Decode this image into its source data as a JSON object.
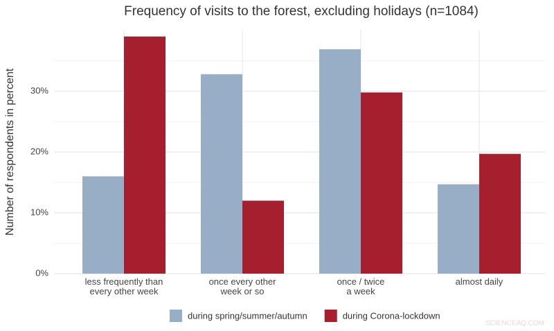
{
  "chart_data": {
    "type": "bar",
    "title": "Frequency of visits to the forest, excluding holidays (n=1084)",
    "y_label": "Number of respondents in percent",
    "categories": [
      "less frequently than\nevery other week",
      "once every other\nweek or so",
      "once / twice\na week",
      "almost daily"
    ],
    "series": [
      {
        "name": "during spring/summer/autumn",
        "color": "#98aec7",
        "values": [
          16.0,
          32.8,
          36.9,
          14.7
        ]
      },
      {
        "name": "during Corona-lockdown",
        "color": "#a51f2e",
        "values": [
          39.0,
          12.0,
          29.8,
          19.7
        ]
      }
    ],
    "ylim": [
      0,
      40
    ],
    "yticks": [
      {
        "value": 0,
        "label": "0%"
      },
      {
        "value": 10,
        "label": "10%"
      },
      {
        "value": 20,
        "label": "20%"
      },
      {
        "value": 30,
        "label": "30%"
      }
    ],
    "minor_yticks": [
      5,
      15,
      25,
      35
    ],
    "grid": true,
    "legend": "bottom",
    "watermark": "SCIENCEAQ.COM"
  }
}
